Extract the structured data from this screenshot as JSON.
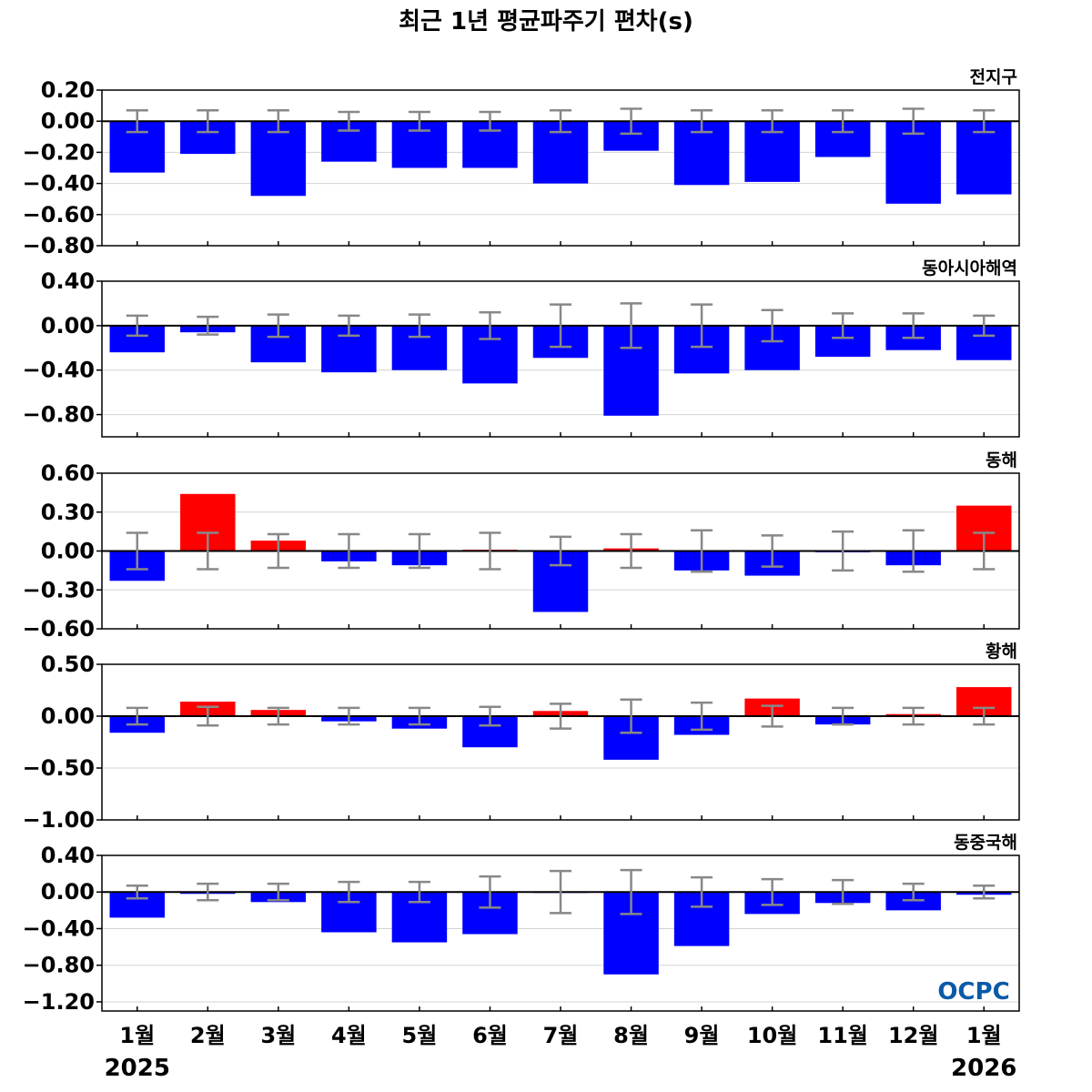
{
  "title": "최근 1년 평균파주기 편차(s)",
  "colors": {
    "negative": "#0000ff",
    "positive": "#ff0000",
    "error_bar": "#888888",
    "zero_line": "#000000",
    "grid": "#d3d3d3"
  },
  "categories": [
    "1월",
    "2월",
    "3월",
    "4월",
    "5월",
    "6월",
    "7월",
    "8월",
    "9월",
    "10월",
    "11월",
    "12월",
    "1월"
  ],
  "year_labels": {
    "start": "2025",
    "end": "2026"
  },
  "logo": "OCPC",
  "chart_data": [
    {
      "type": "bar",
      "region": "전지구",
      "ylim": [
        -0.8,
        0.2
      ],
      "yticks": [
        0.2,
        0.0,
        -0.2,
        -0.4,
        -0.6,
        -0.8
      ],
      "tick_labels": [
        "0.20",
        "0.00",
        "−0.20",
        "−0.40",
        "−0.60",
        "−0.80"
      ],
      "values": [
        -0.33,
        -0.21,
        -0.48,
        -0.26,
        -0.3,
        -0.3,
        -0.4,
        -0.19,
        -0.41,
        -0.39,
        -0.23,
        -0.53,
        -0.47
      ],
      "errors": [
        0.07,
        0.07,
        0.07,
        0.06,
        0.06,
        0.06,
        0.07,
        0.08,
        0.07,
        0.07,
        0.07,
        0.08,
        0.07
      ]
    },
    {
      "type": "bar",
      "region": "동아시아해역",
      "ylim": [
        -1.0,
        0.4
      ],
      "yticks": [
        0.4,
        0.0,
        -0.4,
        -0.8
      ],
      "tick_labels": [
        "0.40",
        "0.00",
        "−0.40",
        "−0.80"
      ],
      "values": [
        -0.24,
        -0.06,
        -0.33,
        -0.42,
        -0.4,
        -0.52,
        -0.29,
        -0.81,
        -0.43,
        -0.4,
        -0.28,
        -0.22,
        -0.31
      ],
      "errors": [
        0.09,
        0.08,
        0.1,
        0.09,
        0.1,
        0.12,
        0.19,
        0.2,
        0.19,
        0.14,
        0.11,
        0.11,
        0.09
      ]
    },
    {
      "type": "bar",
      "region": "동해",
      "ylim": [
        -0.6,
        0.6
      ],
      "yticks": [
        0.6,
        0.3,
        0.0,
        -0.3,
        -0.6
      ],
      "tick_labels": [
        "0.60",
        "0.30",
        "0.00",
        "−0.30",
        "−0.60"
      ],
      "values": [
        -0.23,
        0.44,
        0.08,
        -0.08,
        -0.11,
        0.01,
        -0.47,
        0.02,
        -0.15,
        -0.19,
        -0.01,
        -0.11,
        0.35
      ],
      "errors": [
        0.14,
        0.14,
        0.13,
        0.13,
        0.13,
        0.14,
        0.11,
        0.13,
        0.16,
        0.12,
        0.15,
        0.16,
        0.14
      ]
    },
    {
      "type": "bar",
      "region": "황해",
      "ylim": [
        -1.0,
        0.5
      ],
      "yticks": [
        0.5,
        0.0,
        -0.5,
        -1.0
      ],
      "tick_labels": [
        "0.50",
        "0.00",
        "−0.50",
        "−1.00"
      ],
      "values": [
        -0.16,
        0.14,
        0.06,
        -0.05,
        -0.12,
        -0.3,
        0.05,
        -0.42,
        -0.18,
        0.17,
        -0.08,
        0.02,
        0.28
      ],
      "errors": [
        0.08,
        0.09,
        0.08,
        0.08,
        0.08,
        0.09,
        0.12,
        0.16,
        0.13,
        0.1,
        0.08,
        0.08,
        0.08
      ]
    },
    {
      "type": "bar",
      "region": "동중국해",
      "ylim": [
        -1.3,
        0.4
      ],
      "yticks": [
        0.4,
        0.0,
        -0.4,
        -0.8,
        -1.2
      ],
      "tick_labels": [
        "0.40",
        "0.00",
        "−0.40",
        "−0.80",
        "−1.20"
      ],
      "values": [
        -0.28,
        -0.02,
        -0.11,
        -0.44,
        -0.55,
        -0.46,
        -0.01,
        -0.9,
        -0.59,
        -0.24,
        -0.12,
        -0.2,
        -0.03
      ],
      "errors": [
        0.07,
        0.09,
        0.09,
        0.11,
        0.11,
        0.17,
        0.23,
        0.24,
        0.16,
        0.14,
        0.13,
        0.09,
        0.07
      ]
    }
  ]
}
